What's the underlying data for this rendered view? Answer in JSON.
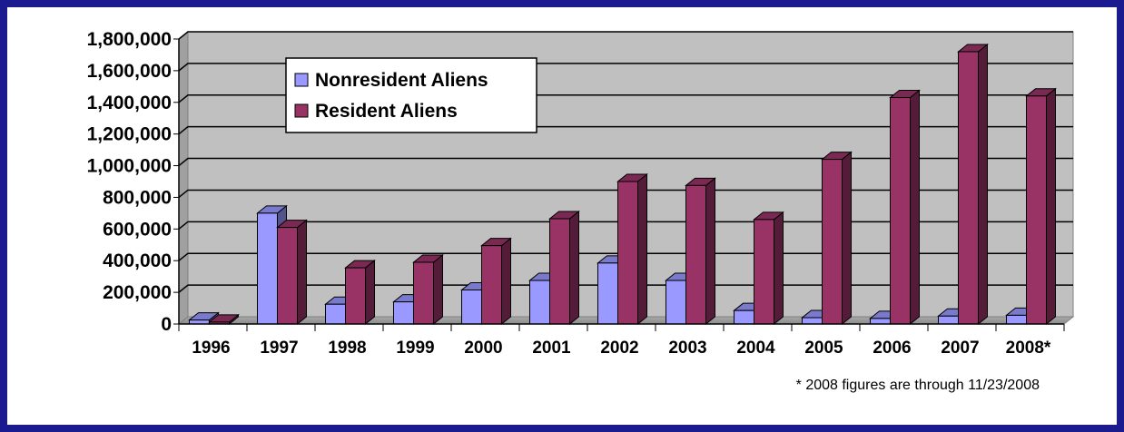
{
  "chart_data": {
    "type": "bar",
    "title": "",
    "xlabel": "",
    "ylabel": "",
    "categories": [
      "1996",
      "1997",
      "1998",
      "1999",
      "2000",
      "2001",
      "2002",
      "2003",
      "2004",
      "2005",
      "2006",
      "2007",
      "2008*"
    ],
    "series": [
      {
        "name": "Nonresident Aliens",
        "color": "#9999ff",
        "values": [
          25000,
          700000,
          125000,
          140000,
          215000,
          275000,
          385000,
          275000,
          85000,
          40000,
          35000,
          50000,
          55000
        ]
      },
      {
        "name": "Resident Aliens",
        "color": "#993366",
        "values": [
          12000,
          610000,
          355000,
          390000,
          495000,
          665000,
          900000,
          875000,
          660000,
          1040000,
          1430000,
          1720000,
          1440000
        ]
      }
    ],
    "ylim": [
      0,
      1800000
    ],
    "yticks": [
      "0",
      "200,000",
      "400,000",
      "600,000",
      "800,000",
      "1,000,000",
      "1,200,000",
      "1,400,000",
      "1,600,000",
      "1,800,000"
    ],
    "grid": true,
    "legend": "top-left",
    "footnote": "* 2008 figures are through 11/23/2008"
  }
}
